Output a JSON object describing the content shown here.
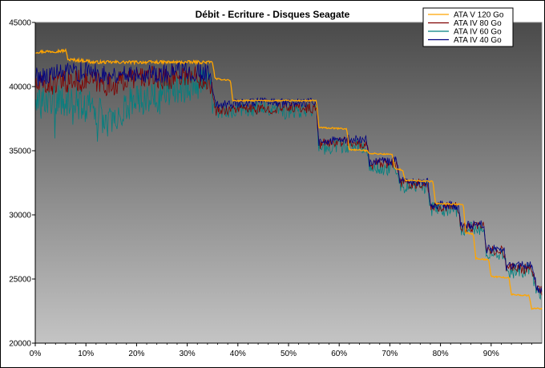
{
  "chart_data": {
    "type": "line",
    "title": "Débit - Ecriture - Disques Seagate",
    "xlabel": "",
    "ylabel": "",
    "ylim": [
      20000,
      45000
    ],
    "xlim": [
      0,
      100
    ],
    "y_ticks": [
      20000,
      25000,
      30000,
      35000,
      40000,
      45000
    ],
    "y_tick_labels": [
      "20000",
      "25000",
      "30000",
      "35000",
      "40000",
      "45000"
    ],
    "x_ticks": [
      0,
      10,
      20,
      30,
      40,
      50,
      60,
      70,
      80,
      90
    ],
    "x_tick_labels": [
      "0%",
      "10%",
      "20%",
      "30%",
      "40%",
      "50%",
      "60%",
      "70%",
      "80%",
      "90%"
    ],
    "legend_position": "top-right",
    "grid": false,
    "background": "gray-gradient",
    "series": [
      {
        "name": "ATA V 120 Go",
        "color": "#FFA500",
        "points": [
          [
            0,
            42700
          ],
          [
            6,
            42800
          ],
          [
            6.5,
            42100
          ],
          [
            10.5,
            42000
          ],
          [
            11,
            41900
          ],
          [
            35,
            41900
          ],
          [
            35.5,
            40600
          ],
          [
            38.5,
            40500
          ],
          [
            39,
            38900
          ],
          [
            55.5,
            38900
          ],
          [
            56,
            36800
          ],
          [
            61.5,
            36700
          ],
          [
            62,
            35100
          ],
          [
            65.5,
            35000
          ],
          [
            66,
            34800
          ],
          [
            70.5,
            34700
          ],
          [
            71,
            33600
          ],
          [
            72.5,
            33500
          ],
          [
            73,
            32700
          ],
          [
            78.5,
            32600
          ],
          [
            79,
            30900
          ],
          [
            84.5,
            30800
          ],
          [
            85,
            28600
          ],
          [
            86.5,
            28500
          ],
          [
            87,
            26600
          ],
          [
            89.5,
            26500
          ],
          [
            90,
            25200
          ],
          [
            93.5,
            25100
          ],
          [
            94,
            23800
          ],
          [
            97.5,
            23700
          ],
          [
            98,
            22700
          ],
          [
            100,
            22700
          ]
        ]
      },
      {
        "name": "ATA IV 80 Go",
        "color": "#800000",
        "points": [
          [
            0,
            40000
          ],
          [
            5,
            40300
          ],
          [
            10,
            40500
          ],
          [
            15,
            40100
          ],
          [
            20,
            40800
          ],
          [
            25,
            40600
          ],
          [
            30,
            40900
          ],
          [
            34.5,
            40500
          ],
          [
            35.5,
            38100
          ],
          [
            40,
            38300
          ],
          [
            45,
            38200
          ],
          [
            50,
            38400
          ],
          [
            55.5,
            38300
          ],
          [
            56,
            35500
          ],
          [
            60,
            35700
          ],
          [
            62,
            35800
          ],
          [
            63,
            35400
          ],
          [
            65.5,
            35600
          ],
          [
            66,
            33900
          ],
          [
            70,
            34000
          ],
          [
            71.5,
            33900
          ],
          [
            72,
            32500
          ],
          [
            77.5,
            32400
          ],
          [
            78,
            30700
          ],
          [
            83.5,
            30600
          ],
          [
            84,
            29000
          ],
          [
            88.5,
            29100
          ],
          [
            89,
            27200
          ],
          [
            92.5,
            27200
          ],
          [
            93,
            25900
          ],
          [
            98,
            25800
          ],
          [
            99,
            24200
          ],
          [
            100,
            24100
          ]
        ]
      },
      {
        "name": "ATA IV 60 Go",
        "color": "#008080",
        "points": [
          [
            0,
            38500
          ],
          [
            4,
            39000
          ],
          [
            8,
            38700
          ],
          [
            12,
            38200
          ],
          [
            15,
            37000
          ],
          [
            18,
            38600
          ],
          [
            22,
            39200
          ],
          [
            26,
            39800
          ],
          [
            30,
            40100
          ],
          [
            34.5,
            40300
          ],
          [
            35.5,
            38000
          ],
          [
            40,
            38100
          ],
          [
            45,
            38300
          ],
          [
            50,
            38000
          ],
          [
            55.5,
            38200
          ],
          [
            56,
            35200
          ],
          [
            62,
            35400
          ],
          [
            65.5,
            35300
          ],
          [
            66,
            33600
          ],
          [
            71.5,
            33700
          ],
          [
            72,
            32300
          ],
          [
            77.5,
            32200
          ],
          [
            78,
            30500
          ],
          [
            83.5,
            30400
          ],
          [
            84,
            28900
          ],
          [
            88.5,
            28800
          ],
          [
            89,
            27000
          ],
          [
            92.5,
            27100
          ],
          [
            93,
            25600
          ],
          [
            98,
            25700
          ],
          [
            99,
            24000
          ],
          [
            100,
            23900
          ]
        ]
      },
      {
        "name": "ATA IV 40 Go",
        "color": "#000080",
        "points": [
          [
            0,
            40800
          ],
          [
            5,
            41000
          ],
          [
            10,
            41200
          ],
          [
            15,
            40900
          ],
          [
            20,
            41100
          ],
          [
            25,
            41000
          ],
          [
            30,
            41300
          ],
          [
            34.5,
            41000
          ],
          [
            35.5,
            38600
          ],
          [
            40,
            38700
          ],
          [
            45,
            38800
          ],
          [
            50,
            38700
          ],
          [
            55.5,
            38800
          ],
          [
            56,
            35700
          ],
          [
            60,
            35800
          ],
          [
            62,
            35900
          ],
          [
            65.5,
            35800
          ],
          [
            66,
            34100
          ],
          [
            71.5,
            34200
          ],
          [
            72,
            32600
          ],
          [
            77.5,
            32500
          ],
          [
            78,
            30800
          ],
          [
            83.5,
            30700
          ],
          [
            84,
            29200
          ],
          [
            88.5,
            29300
          ],
          [
            89,
            27300
          ],
          [
            92.5,
            27400
          ],
          [
            93,
            26000
          ],
          [
            98,
            26100
          ],
          [
            99,
            24300
          ],
          [
            100,
            24200
          ]
        ]
      }
    ]
  }
}
